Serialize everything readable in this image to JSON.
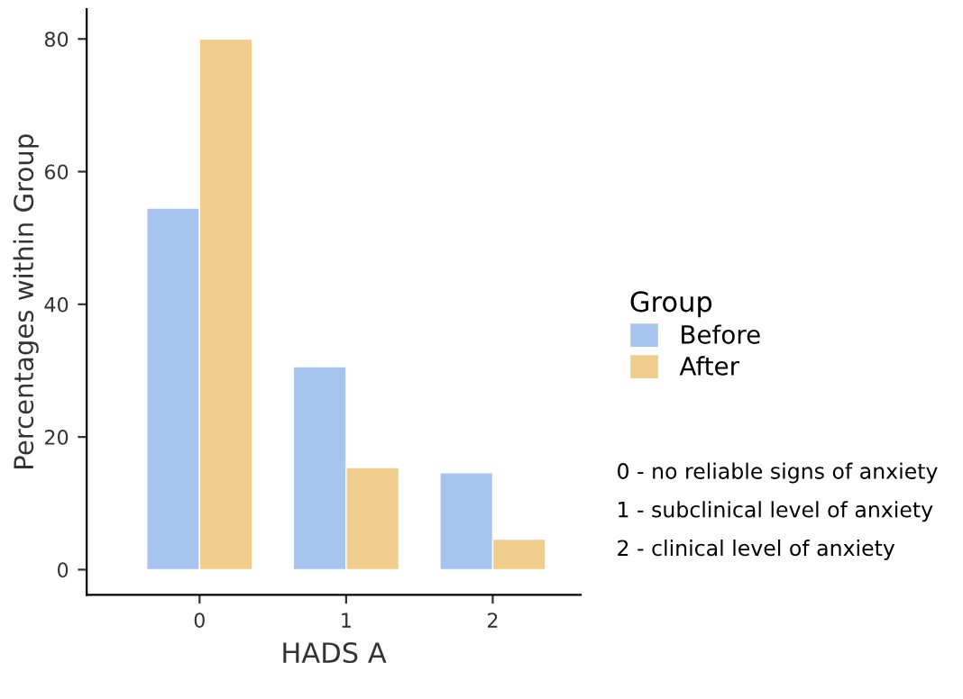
{
  "chart_data": {
    "type": "bar",
    "xlabel": "HADS A",
    "ylabel": "Percentages within Group",
    "legend_title": "Group",
    "categories": [
      "0",
      "1",
      "2"
    ],
    "series": [
      {
        "name": "Before",
        "color": "#a7c3f0",
        "values": [
          54.5,
          30.6,
          14.6
        ]
      },
      {
        "name": "After",
        "color": "#f0cd8c",
        "values": [
          80,
          15.4,
          4.6
        ]
      }
    ],
    "ylim": [
      -3.8,
      84.5
    ],
    "yticks": [
      0,
      20,
      40,
      60,
      80
    ],
    "grid": false,
    "legend": "right",
    "annotations": [
      "0 - no reliable signs of anxiety",
      "1 - subclinical level of anxiety",
      "2 - clinical level of anxiety"
    ]
  }
}
